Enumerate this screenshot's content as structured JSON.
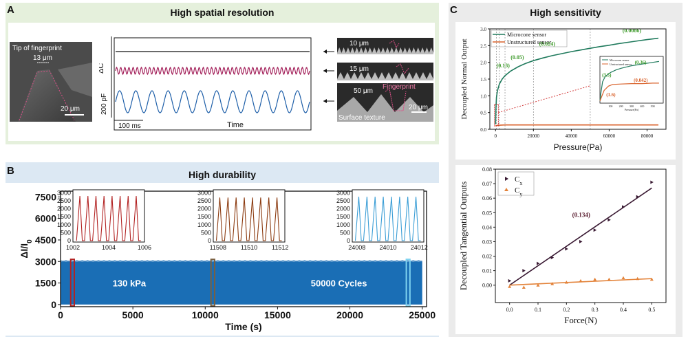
{
  "panels": {
    "a": {
      "letter": "A",
      "title": "High spatial resolution",
      "micrograph": {
        "label_tip": "Tip of fingerprint",
        "label_width": "13 μm",
        "scale_bar": "20 μm"
      },
      "signal_axis": {
        "ylabel": "ΔC",
        "scale_label": "200 pF",
        "time_scale": "100 ms",
        "xlabel": "Time"
      },
      "insets": [
        {
          "label": "10 μm"
        },
        {
          "label": "15 μm"
        },
        {
          "label": "50 μm",
          "fingerprint_label": "Fingerprint",
          "surface_label": "Surface texture",
          "scale_bar": "20 μm"
        }
      ]
    },
    "b": {
      "letter": "B",
      "title": "High durability",
      "annotations": {
        "pressure": "130 kPa",
        "cycles": "50000 Cycles"
      }
    },
    "c": {
      "letter": "C",
      "title": "High sensitivity"
    }
  },
  "chart_data": [
    {
      "type": "line",
      "panel": "A",
      "xlabel": "Time",
      "ylabel": "ΔC",
      "series": [
        {
          "name": "10 μm",
          "cycles": 0,
          "amplitude": 0,
          "color": "#111111"
        },
        {
          "name": "15 μm",
          "cycles": 47,
          "amplitude": 1,
          "color": "#a3205a"
        },
        {
          "name": "50 μm",
          "cycles": 12,
          "amplitude": 4,
          "color": "#1d5ea8"
        }
      ]
    },
    {
      "type": "area",
      "panel": "B",
      "xlabel": "Time (s)",
      "ylabel": "ΔI/I",
      "ylabel_sub": "0",
      "xlim": [
        0,
        25300
      ],
      "ylim": [
        -150,
        7900
      ],
      "xticks": [
        0,
        5000,
        10000,
        15000,
        20000,
        25000
      ],
      "xtick_labels": [
        "0",
        "5000",
        "10000",
        "15000",
        "20000",
        "25000"
      ],
      "yticks": [
        0,
        1500,
        3000,
        4500,
        6000,
        7500
      ],
      "ytick_labels": [
        "0",
        "1500",
        "3000",
        "4500",
        "6000",
        "7500"
      ],
      "band": {
        "x_start": 0,
        "x_end": 25000,
        "low": 0,
        "high": 3000,
        "color": "#1a6eb5"
      },
      "highlights": [
        {
          "x_start": 700,
          "x_end": 950,
          "color": "#b22222"
        },
        {
          "x_start": 10400,
          "x_end": 10650,
          "color": "#7a6040"
        },
        {
          "x_start": 23900,
          "x_end": 24150,
          "color": "#7fd3f0"
        }
      ],
      "insets": [
        {
          "xticks": [
            1002,
            1004,
            1006
          ],
          "xtick_labels": [
            "1002",
            "1004",
            "1006"
          ],
          "xlim": [
            1002,
            1006
          ],
          "yticks": [
            0,
            500,
            1000,
            1500,
            2000,
            2500,
            3000
          ],
          "ytick_labels": [
            "0",
            "500",
            "1000",
            "1500",
            "2000",
            "2500",
            "3000"
          ],
          "ylim": [
            0,
            3100
          ],
          "peaks": 8,
          "peak_value": 2800,
          "color": "#b22222"
        },
        {
          "xticks": [
            11508,
            11510,
            11512
          ],
          "xtick_labels": [
            "11508",
            "11510",
            "11512"
          ],
          "xlim": [
            11507.7,
            11512.3
          ],
          "yticks": [
            0,
            500,
            1000,
            1500,
            2000,
            2500,
            3000
          ],
          "ytick_labels": [
            "0",
            "500",
            "1000",
            "1500",
            "2000",
            "2500",
            "3000"
          ],
          "ylim": [
            0,
            3100
          ],
          "peaks": 8,
          "peak_value": 2700,
          "color": "#8b3a0f"
        },
        {
          "xticks": [
            24008,
            24010,
            24012
          ],
          "xtick_labels": [
            "24008",
            "24010",
            "24012"
          ],
          "xlim": [
            24007.7,
            24012.3
          ],
          "yticks": [
            0,
            500,
            1000,
            1500,
            2000,
            2500,
            3000
          ],
          "ytick_labels": [
            "0",
            "500",
            "1000",
            "1500",
            "2000",
            "2500",
            "3000"
          ],
          "ylim": [
            0,
            3100
          ],
          "peaks": 8,
          "peak_value": 2750,
          "color": "#3b9ed6"
        }
      ]
    },
    {
      "type": "line",
      "panel": "C-top",
      "xlabel": "Pressure(Pa)",
      "ylabel": "Decoupled Normal Output",
      "xlim": [
        -3000,
        90000
      ],
      "ylim": [
        0,
        3.0
      ],
      "xticks": [
        0,
        20000,
        40000,
        60000,
        80000
      ],
      "xtick_labels": [
        "0",
        "20000",
        "40000",
        "60000",
        "80000"
      ],
      "yticks": [
        0.0,
        0.5,
        1.0,
        1.5,
        2.0,
        2.5,
        3.0
      ],
      "ytick_labels": [
        "0.0",
        "0.5",
        "1.0",
        "1.5",
        "2.0",
        "2.5",
        "3.0"
      ],
      "vlines": [
        500,
        2000,
        5000,
        20000,
        50000
      ],
      "slope_labels": [
        {
          "text": "(0.13)",
          "x": 500,
          "y": 1.85
        },
        {
          "text": "(0.05)",
          "x": 8000,
          "y": 2.1
        },
        {
          "text": "(0.024)",
          "x": 23000,
          "y": 2.5
        },
        {
          "text": "(0.0086)",
          "x": 67000,
          "y": 2.9
        }
      ],
      "series": [
        {
          "name": "Microcone sensor",
          "color": "#1f7a5c",
          "x": [
            0,
            200,
            500,
            1000,
            2000,
            3500,
            5000,
            8000,
            12000,
            16000,
            20000,
            25000,
            30000,
            35000,
            40000,
            45000,
            50000,
            55000,
            60000,
            65000,
            70000,
            75000,
            80000,
            86000
          ],
          "y": [
            0.15,
            0.6,
            0.95,
            1.15,
            1.35,
            1.5,
            1.6,
            1.74,
            1.87,
            1.97,
            2.05,
            2.13,
            2.2,
            2.26,
            2.32,
            2.37,
            2.42,
            2.47,
            2.51,
            2.56,
            2.6,
            2.64,
            2.68,
            2.72
          ]
        },
        {
          "name": "Unstructured sensor",
          "color": "#d9622b",
          "x": [
            0,
            1000,
            5000,
            20000,
            40000,
            60000,
            86000
          ],
          "y": [
            0.1,
            0.12,
            0.13,
            0.13,
            0.13,
            0.13,
            0.13
          ]
        }
      ],
      "inset": {
        "xlabel": "Pressure(Pa)",
        "xlim": [
          0,
          600
        ],
        "xticks": [
          100,
          200,
          300,
          400,
          500
        ],
        "xtick_labels": [
          "100",
          "200",
          "300",
          "400",
          "500"
        ],
        "ylim": [
          0,
          1.1
        ],
        "labels": [
          {
            "text": "(3.5)",
            "x": 20,
            "y": 0.62
          },
          {
            "text": "(0.36)",
            "x": 330,
            "y": 0.92
          },
          {
            "text": "(0.042)",
            "x": 320,
            "y": 0.5
          },
          {
            "text": "(1.6)",
            "x": 60,
            "y": 0.16
          }
        ],
        "series": [
          {
            "name": "Microcone sensor",
            "color": "#1f7a5c",
            "x": [
              0,
              10,
              25,
              50,
              100,
              150,
              200,
              300,
              400,
              500,
              560
            ],
            "y": [
              0.05,
              0.25,
              0.5,
              0.63,
              0.72,
              0.78,
              0.82,
              0.88,
              0.92,
              0.96,
              0.98
            ]
          },
          {
            "name": "Unstructured sensor",
            "color": "#d9622b",
            "x": [
              0,
              40,
              80,
              120,
              200,
              300,
              400,
              500,
              560
            ],
            "y": [
              0.05,
              0.3,
              0.4,
              0.44,
              0.45,
              0.46,
              0.46,
              0.47,
              0.47
            ]
          }
        ]
      }
    },
    {
      "type": "scatter",
      "panel": "C-bottom",
      "xlabel": "Force(N)",
      "ylabel": "Decoupled Tangential Outputs",
      "xlim": [
        -0.05,
        0.55
      ],
      "ylim": [
        -0.012,
        0.08
      ],
      "xticks": [
        0.0,
        0.1,
        0.2,
        0.3,
        0.4,
        0.5
      ],
      "xtick_labels": [
        "0.0",
        "0.1",
        "0.2",
        "0.3",
        "0.4",
        "0.5"
      ],
      "yticks": [
        0.0,
        0.01,
        0.02,
        0.03,
        0.04,
        0.05,
        0.06,
        0.07,
        0.08
      ],
      "ytick_labels": [
        "0.00",
        "0.01",
        "0.02",
        "0.03",
        "0.04",
        "0.05",
        "0.06",
        "0.07",
        "0.08"
      ],
      "slope_label": {
        "text": "(0.134)",
        "x": 0.22,
        "y": 0.047
      },
      "series": [
        {
          "name": "C",
          "sub": "x",
          "color": "#3a1a33",
          "fit": [
            [
              0.0,
              0.0
            ],
            [
              0.5,
              0.067
            ]
          ],
          "x": [
            0.0,
            0.05,
            0.1,
            0.15,
            0.2,
            0.25,
            0.3,
            0.35,
            0.4,
            0.45,
            0.5
          ],
          "y": [
            0.003,
            0.01,
            0.015,
            0.019,
            0.025,
            0.03,
            0.038,
            0.045,
            0.054,
            0.061,
            0.071
          ]
        },
        {
          "name": "C",
          "sub": "y",
          "color": "#e3833a",
          "fit": [
            [
              0.0,
              0.0
            ],
            [
              0.5,
              0.0045
            ]
          ],
          "x": [
            0.0,
            0.05,
            0.1,
            0.15,
            0.2,
            0.25,
            0.3,
            0.35,
            0.4,
            0.45,
            0.5
          ],
          "y": [
            -0.001,
            -0.0015,
            0.0,
            0.001,
            0.002,
            0.003,
            0.004,
            0.004,
            0.005,
            0.0045,
            0.004
          ]
        }
      ]
    }
  ]
}
